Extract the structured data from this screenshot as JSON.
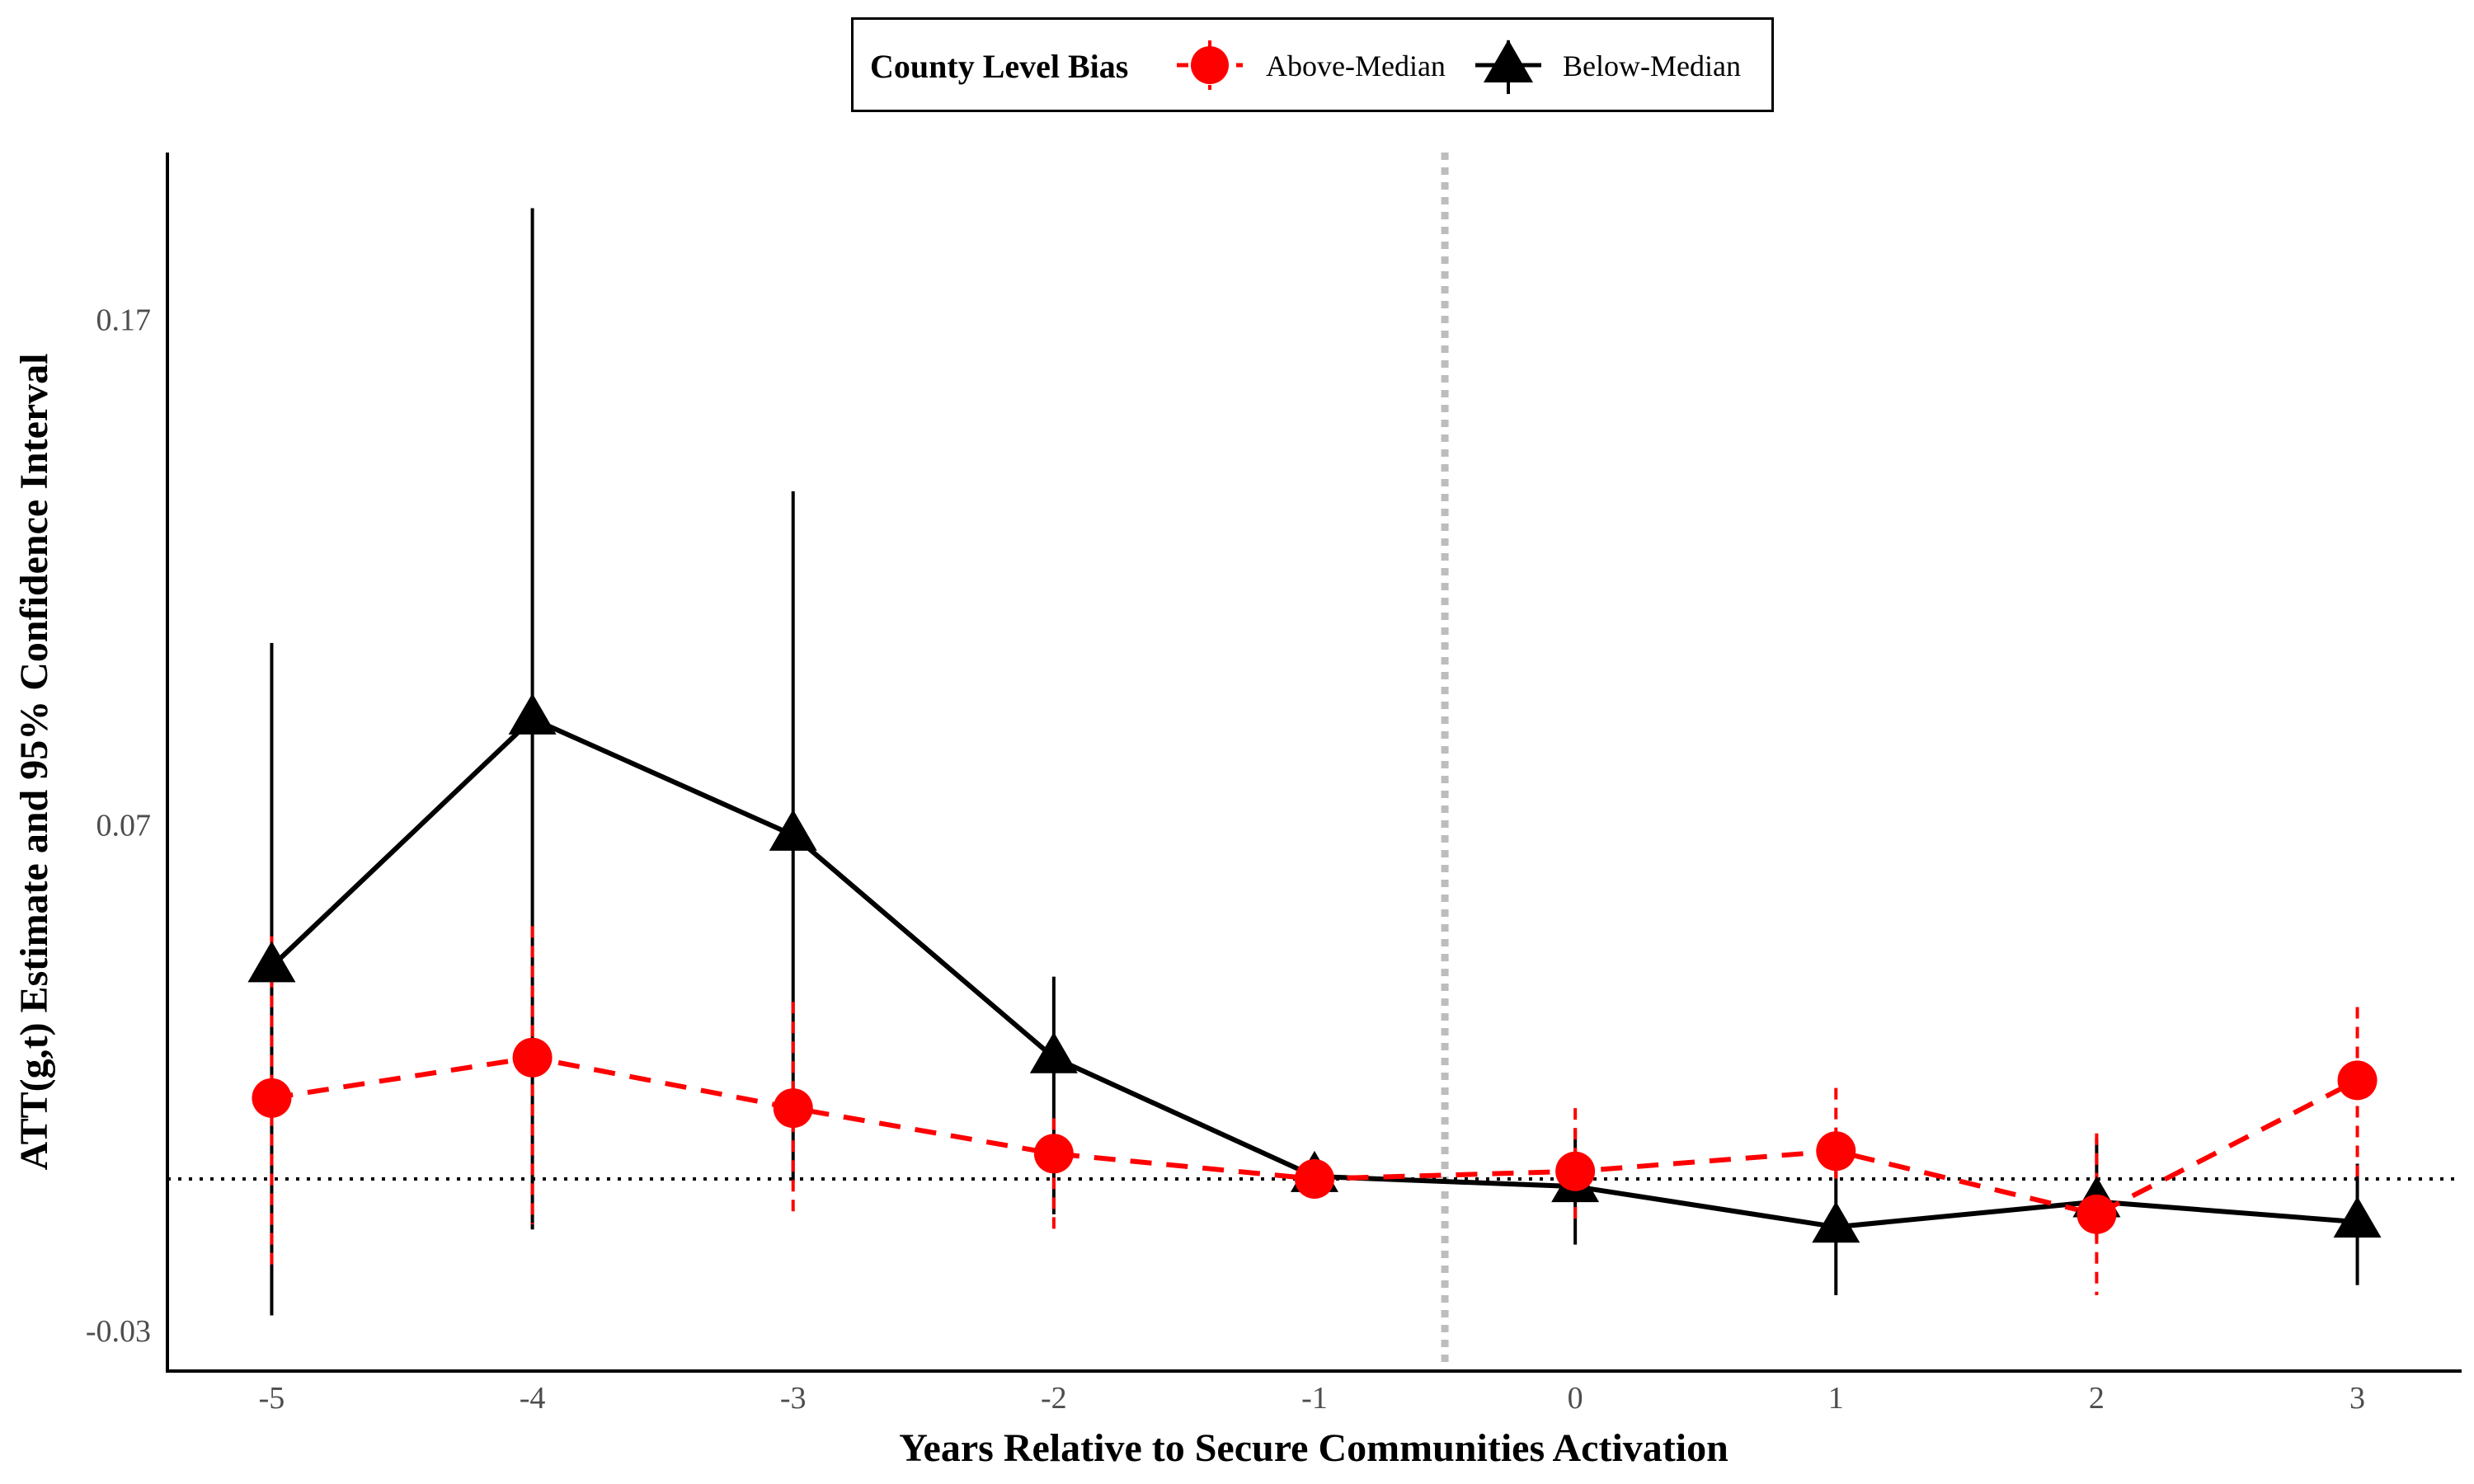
{
  "chart_data": {
    "type": "line",
    "title": "",
    "xlabel": "Years Relative to Secure Communities Activation",
    "ylabel": "ATT(g,t) Estimate and 95% Confidence Interval",
    "x": [
      -5,
      -4,
      -3,
      -2,
      -1,
      0,
      1,
      2,
      3
    ],
    "x_tick_labels": [
      "-5",
      "-4",
      "-3",
      "-2",
      "-1",
      "0",
      "1",
      "2",
      "3"
    ],
    "y_ticks": [
      0.17,
      0.07,
      -0.03
    ],
    "y_tick_labels": [
      "0.17",
      "0.07",
      "-0.03"
    ],
    "ylim": [
      -0.038,
      0.203
    ],
    "xlim": [
      -5.4,
      3.4
    ],
    "legend": {
      "title": "County Level Bias",
      "position": "top-center"
    },
    "reference_lines": {
      "horizontal_y": 0,
      "vertical_x": -0.5
    },
    "series": [
      {
        "name": "Above-Median",
        "marker": "circle",
        "line_style": "dashed",
        "color": "#ff0000",
        "values": [
          0.016,
          0.024,
          0.014,
          0.005,
          0.0,
          0.0015,
          0.0055,
          -0.007,
          0.0195
        ],
        "ci_lower": [
          -0.018,
          -0.009,
          -0.007,
          -0.01,
          0.0,
          -0.008,
          -0.0015,
          -0.023,
          0.0005
        ],
        "ci_upper": [
          0.048,
          0.05,
          0.035,
          0.012,
          0.0,
          0.014,
          0.018,
          0.009,
          0.034
        ]
      },
      {
        "name": "Below-Median",
        "marker": "triangle",
        "line_style": "solid",
        "color": "#000000",
        "values": [
          0.042,
          0.091,
          0.068,
          0.024,
          0.0005,
          -0.0015,
          -0.0095,
          -0.0045,
          -0.0085
        ],
        "ci_lower": [
          -0.027,
          -0.01,
          -0.0005,
          -0.007,
          -0.0025,
          -0.013,
          -0.023,
          -0.012,
          -0.021
        ],
        "ci_upper": [
          0.106,
          0.192,
          0.136,
          0.04,
          0.003,
          0.01,
          0.0045,
          0.008,
          0.003
        ]
      }
    ]
  }
}
